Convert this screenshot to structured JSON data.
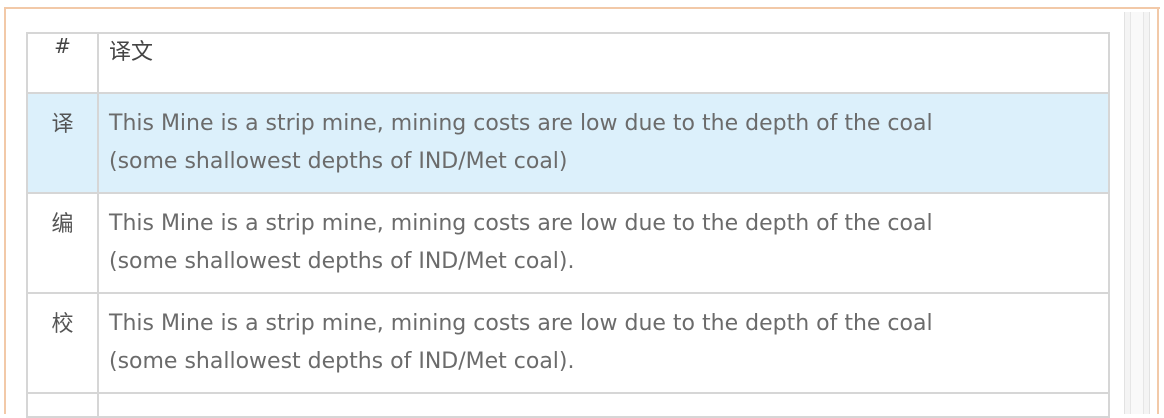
{
  "table": {
    "header": {
      "index_label": "#",
      "text_label": "译文"
    },
    "rows": [
      {
        "marker": "译",
        "line1": "This Mine is a strip mine, mining costs are low due to the depth of the coal",
        "line2": "(some shallowest depths of IND/Met coal)",
        "highlighted": true
      },
      {
        "marker": "编",
        "line1": "This Mine is a strip mine, mining costs are low due to the depth of the coal",
        "line2": "(some shallowest depths of IND/Met coal).",
        "highlighted": false
      },
      {
        "marker": "校",
        "line1": "This Mine is a strip mine, mining costs are low due to the depth of the coal",
        "line2": "(some shallowest depths of IND/Met coal).",
        "highlighted": false
      }
    ]
  },
  "colors": {
    "highlight_row": "#dcf0fb",
    "outer_border": "#f2c9a8",
    "grid": "#d6d6d6"
  }
}
